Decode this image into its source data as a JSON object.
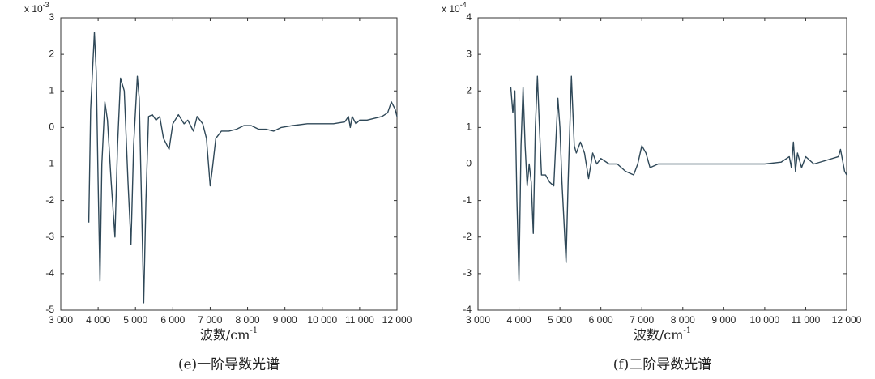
{
  "chart_data": [
    {
      "type": "line",
      "caption": "(e)一阶导数光谱",
      "xlabel": "波数/cm",
      "xlabel_superscript": "-1",
      "y_multiplier": "x 10",
      "y_multiplier_exponent": "-3",
      "xlim": [
        3000,
        12000
      ],
      "ylim": [
        -5,
        3
      ],
      "xticks": [
        {
          "value": 3000,
          "label": "3 000"
        },
        {
          "value": 4000,
          "label": "4 000"
        },
        {
          "value": 5000,
          "label": "5 000"
        },
        {
          "value": 6000,
          "label": "6 000"
        },
        {
          "value": 7000,
          "label": "7 000"
        },
        {
          "value": 8000,
          "label": "8 000"
        },
        {
          "value": 9000,
          "label": "9 000"
        },
        {
          "value": 10000,
          "label": "10 000"
        },
        {
          "value": 11000,
          "label": "11 000"
        },
        {
          "value": 12000,
          "label": "12 000"
        }
      ],
      "yticks": [
        -5,
        -4,
        -3,
        -2,
        -1,
        0,
        1,
        2,
        3
      ],
      "x": [
        3750,
        3800,
        3900,
        3950,
        4000,
        4050,
        4100,
        4180,
        4250,
        4350,
        4450,
        4520,
        4600,
        4700,
        4800,
        4880,
        4950,
        5050,
        5100,
        5150,
        5220,
        5280,
        5350,
        5450,
        5550,
        5650,
        5750,
        5900,
        6000,
        6150,
        6300,
        6400,
        6500,
        6550,
        6650,
        6800,
        6900,
        7000,
        7050,
        7150,
        7300,
        7500,
        7700,
        7900,
        8100,
        8300,
        8500,
        8700,
        8900,
        9200,
        9600,
        10000,
        10300,
        10600,
        10700,
        10750,
        10800,
        10900,
        11000,
        11200,
        11400,
        11600,
        11750,
        11850,
        11950,
        12000
      ],
      "series": [
        {
          "color": "#2f4858",
          "values": [
            -2.6,
            0.5,
            2.6,
            1.5,
            -1.5,
            -4.2,
            -1,
            0.7,
            0.2,
            -1.5,
            -3.0,
            -0.5,
            1.35,
            1.0,
            -1.5,
            -3.2,
            -0.5,
            1.4,
            0.8,
            -1.5,
            -4.8,
            -2,
            0.3,
            0.35,
            0.2,
            0.3,
            -0.3,
            -0.6,
            0.1,
            0.35,
            0.1,
            0.2,
            0.0,
            -0.1,
            0.3,
            0.1,
            -0.3,
            -1.6,
            -1.2,
            -0.3,
            -0.1,
            -0.1,
            -0.05,
            0.05,
            0.05,
            -0.05,
            -0.05,
            -0.1,
            0.0,
            0.05,
            0.1,
            0.1,
            0.1,
            0.15,
            0.3,
            0.0,
            0.3,
            0.1,
            0.2,
            0.2,
            0.25,
            0.3,
            0.4,
            0.7,
            0.5,
            0.3
          ]
        }
      ]
    },
    {
      "type": "line",
      "caption": "(f)二阶导数光谱",
      "xlabel": "波数/cm",
      "xlabel_superscript": "-1",
      "y_multiplier": "x 10",
      "y_multiplier_exponent": "-4",
      "xlim": [
        3000,
        12000
      ],
      "ylim": [
        -4,
        4
      ],
      "xticks": [
        {
          "value": 3000,
          "label": "3 000"
        },
        {
          "value": 4000,
          "label": "4 000"
        },
        {
          "value": 5000,
          "label": "5 000"
        },
        {
          "value": 6000,
          "label": "6 000"
        },
        {
          "value": 7000,
          "label": "7 000"
        },
        {
          "value": 8000,
          "label": "8 000"
        },
        {
          "value": 9000,
          "label": "9 000"
        },
        {
          "value": 10000,
          "label": "10 000"
        },
        {
          "value": 11000,
          "label": "11 000"
        },
        {
          "value": 12000,
          "label": "12 000"
        }
      ],
      "yticks": [
        -4,
        -3,
        -2,
        -1,
        0,
        1,
        2,
        3,
        4
      ],
      "x": [
        3800,
        3850,
        3900,
        3950,
        4000,
        4050,
        4100,
        4150,
        4200,
        4250,
        4300,
        4350,
        4400,
        4450,
        4500,
        4550,
        4650,
        4750,
        4850,
        4950,
        5000,
        5050,
        5150,
        5200,
        5280,
        5350,
        5400,
        5500,
        5600,
        5700,
        5800,
        5900,
        6000,
        6200,
        6400,
        6600,
        6800,
        6900,
        7000,
        7100,
        7200,
        7400,
        7700,
        8000,
        9000,
        10000,
        10400,
        10600,
        10650,
        10700,
        10750,
        10800,
        10900,
        11000,
        11200,
        11500,
        11800,
        11850,
        11950,
        12000
      ],
      "series": [
        {
          "color": "#2f4858",
          "values": [
            2.1,
            1.4,
            2.0,
            -1.0,
            -3.2,
            0.5,
            2.1,
            0.5,
            -0.6,
            0,
            -0.5,
            -1.9,
            1.0,
            2.4,
            1.0,
            -0.3,
            -0.3,
            -0.5,
            -0.6,
            1.8,
            1.0,
            -0.5,
            -2.7,
            -0.5,
            2.4,
            0.5,
            0.3,
            0.6,
            0.3,
            -0.4,
            0.3,
            0.0,
            0.15,
            0.0,
            0.0,
            -0.2,
            -0.3,
            0.0,
            0.5,
            0.3,
            -0.1,
            0.0,
            0.0,
            0.0,
            0.0,
            0.0,
            0.05,
            0.2,
            -0.1,
            0.6,
            -0.2,
            0.3,
            -0.1,
            0.2,
            0.0,
            0.1,
            0.2,
            0.4,
            -0.2,
            -0.3
          ]
        }
      ]
    }
  ]
}
